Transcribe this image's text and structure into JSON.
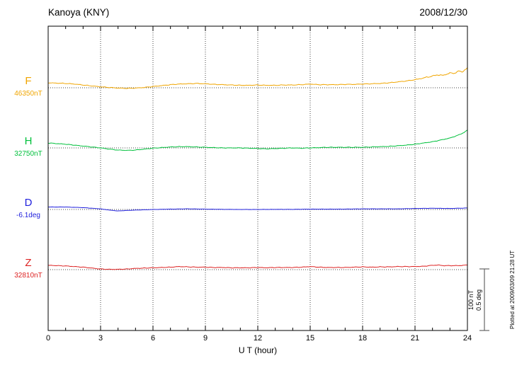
{
  "chart_data": {
    "type": "line",
    "title": "Kanoya (KNY)",
    "date": "2008/12/30",
    "xlabel": "U T (hour)",
    "xlim": [
      0,
      24
    ],
    "x_ticks": [
      0,
      3,
      6,
      9,
      12,
      15,
      18,
      21,
      24
    ],
    "x_minor_step": 1,
    "grid": "dotted vertical at 3h intervals, dotted horizontal baseline per trace",
    "scale": {
      "nT_per_div": 100,
      "deg_per_div": 0.5
    },
    "annotations": {
      "scale_nT": "100 nT",
      "scale_deg": "0.5 deg",
      "plotted_at": "Plotted at 2009/03/09 21:28 UT"
    },
    "series": [
      {
        "name": "F",
        "baseline_label": "46350nT",
        "baseline_value": 46350,
        "unit": "nT",
        "color": "#f0a500",
        "points": [
          [
            0,
            8
          ],
          [
            0.5,
            7.5
          ],
          [
            1,
            7
          ],
          [
            1.5,
            6
          ],
          [
            2,
            4.5
          ],
          [
            2.5,
            3
          ],
          [
            3,
            1.5
          ],
          [
            3.5,
            0.5
          ],
          [
            4,
            -0.5
          ],
          [
            4.5,
            -1
          ],
          [
            5,
            -0.5
          ],
          [
            5.5,
            0.5
          ],
          [
            6,
            2
          ],
          [
            6.5,
            3.5
          ],
          [
            7,
            5
          ],
          [
            7.5,
            6
          ],
          [
            8,
            6.5
          ],
          [
            8.5,
            7
          ],
          [
            9,
            6.5
          ],
          [
            9.5,
            5.5
          ],
          [
            10,
            5
          ],
          [
            10.5,
            4.5
          ],
          [
            11,
            4
          ],
          [
            11.5,
            4
          ],
          [
            12,
            4.5
          ],
          [
            12.5,
            4
          ],
          [
            13,
            4
          ],
          [
            13.5,
            4.5
          ],
          [
            14,
            4.5
          ],
          [
            14.5,
            5
          ],
          [
            15,
            6
          ],
          [
            15.5,
            5
          ],
          [
            16,
            5
          ],
          [
            16.5,
            5
          ],
          [
            17,
            5.5
          ],
          [
            17.5,
            5.5
          ],
          [
            18,
            6
          ],
          [
            18.5,
            6.5
          ],
          [
            19,
            7
          ],
          [
            19.5,
            8
          ],
          [
            20,
            9.5
          ],
          [
            20.5,
            11
          ],
          [
            21,
            13
          ],
          [
            21.5,
            16
          ],
          [
            22,
            19
          ],
          [
            22.3,
            21
          ],
          [
            22.6,
            20
          ],
          [
            23,
            24
          ],
          [
            23.2,
            23
          ],
          [
            23.5,
            27
          ],
          [
            23.7,
            26
          ],
          [
            23.85,
            29
          ],
          [
            24,
            32
          ]
        ]
      },
      {
        "name": "H",
        "baseline_label": "32750nT",
        "baseline_value": 32750,
        "unit": "nT",
        "color": "#00c03c",
        "points": [
          [
            0,
            8
          ],
          [
            0.5,
            7
          ],
          [
            1,
            6
          ],
          [
            1.5,
            4.5
          ],
          [
            2,
            3
          ],
          [
            2.5,
            1.5
          ],
          [
            3,
            0
          ],
          [
            3.5,
            -2
          ],
          [
            4,
            -3.5
          ],
          [
            4.5,
            -4
          ],
          [
            5,
            -3.5
          ],
          [
            5.5,
            -2
          ],
          [
            6,
            -0.5
          ],
          [
            6.5,
            0.5
          ],
          [
            7,
            1.5
          ],
          [
            7.5,
            2
          ],
          [
            8,
            2
          ],
          [
            8.5,
            1.5
          ],
          [
            9,
            1
          ],
          [
            9.5,
            0.5
          ],
          [
            10,
            0
          ],
          [
            10.5,
            0
          ],
          [
            11,
            0
          ],
          [
            11.5,
            -0.5
          ],
          [
            12,
            -1
          ],
          [
            12.5,
            -1.5
          ],
          [
            13,
            -1
          ],
          [
            13.5,
            -0.5
          ],
          [
            14,
            0
          ],
          [
            14.5,
            -0.5
          ],
          [
            15,
            0
          ],
          [
            15.5,
            0.5
          ],
          [
            16,
            1
          ],
          [
            16.5,
            1
          ],
          [
            17,
            1
          ],
          [
            17.5,
            1
          ],
          [
            18,
            1
          ],
          [
            18.5,
            1.5
          ],
          [
            19,
            2
          ],
          [
            19.5,
            2.5
          ],
          [
            20,
            3.5
          ],
          [
            20.5,
            4.5
          ],
          [
            21,
            6
          ],
          [
            21.5,
            8
          ],
          [
            22,
            10
          ],
          [
            22.5,
            13
          ],
          [
            23,
            16
          ],
          [
            23.5,
            21
          ],
          [
            23.8,
            25
          ],
          [
            24,
            29
          ]
        ]
      },
      {
        "name": "D",
        "baseline_label": "-6.1deg",
        "baseline_value": -6.1,
        "unit": "deg",
        "color": "#2222dd",
        "points": [
          [
            0,
            0.02
          ],
          [
            1,
            0.02
          ],
          [
            2,
            0.015
          ],
          [
            3,
            0.005
          ],
          [
            3.5,
            -0.005
          ],
          [
            4,
            -0.012
          ],
          [
            4.5,
            -0.008
          ],
          [
            5,
            -0.005
          ],
          [
            6,
            0
          ],
          [
            7,
            0.003
          ],
          [
            8,
            0.005
          ],
          [
            9,
            0.003
          ],
          [
            10,
            0.001
          ],
          [
            11,
            0
          ],
          [
            12,
            0
          ],
          [
            13,
            0.001
          ],
          [
            14,
            0.001
          ],
          [
            15,
            0.003
          ],
          [
            16,
            0.003
          ],
          [
            17,
            0.003
          ],
          [
            18,
            0.005
          ],
          [
            19,
            0.005
          ],
          [
            20,
            0.005
          ],
          [
            21,
            0.008
          ],
          [
            22,
            0.01
          ],
          [
            23,
            0.008
          ],
          [
            24,
            0.012
          ]
        ]
      },
      {
        "name": "Z",
        "baseline_label": "32810nT",
        "baseline_value": 32810,
        "unit": "nT",
        "color": "#dd2222",
        "points": [
          [
            0,
            7
          ],
          [
            0.5,
            6.5
          ],
          [
            1,
            6
          ],
          [
            1.5,
            5
          ],
          [
            2,
            4
          ],
          [
            2.5,
            2.5
          ],
          [
            3,
            1
          ],
          [
            3.5,
            0.5
          ],
          [
            4,
            0.5
          ],
          [
            4.5,
            1
          ],
          [
            5,
            2
          ],
          [
            5.5,
            2.5
          ],
          [
            6,
            3
          ],
          [
            6.5,
            3.5
          ],
          [
            7,
            4
          ],
          [
            7.5,
            5
          ],
          [
            8,
            4.5
          ],
          [
            8.5,
            4
          ],
          [
            9,
            4
          ],
          [
            9.5,
            3.5
          ],
          [
            10,
            3.5
          ],
          [
            10.5,
            3
          ],
          [
            11,
            3
          ],
          [
            11.5,
            3
          ],
          [
            12,
            3.5
          ],
          [
            12.5,
            3
          ],
          [
            13,
            3.5
          ],
          [
            13.5,
            3.5
          ],
          [
            14,
            3.5
          ],
          [
            14.5,
            4
          ],
          [
            15,
            5
          ],
          [
            15.5,
            4
          ],
          [
            16,
            3.5
          ],
          [
            16.5,
            3.5
          ],
          [
            17,
            3.5
          ],
          [
            17.5,
            4
          ],
          [
            18,
            4.5
          ],
          [
            18.5,
            4
          ],
          [
            19,
            4.5
          ],
          [
            19.5,
            4.5
          ],
          [
            20,
            5
          ],
          [
            20.5,
            5
          ],
          [
            21,
            5
          ],
          [
            21.5,
            5.5
          ],
          [
            22,
            7
          ],
          [
            22.3,
            7.5
          ],
          [
            22.6,
            6.5
          ],
          [
            23,
            6.5
          ],
          [
            23.5,
            6.5
          ],
          [
            24,
            7.5
          ]
        ]
      }
    ]
  }
}
